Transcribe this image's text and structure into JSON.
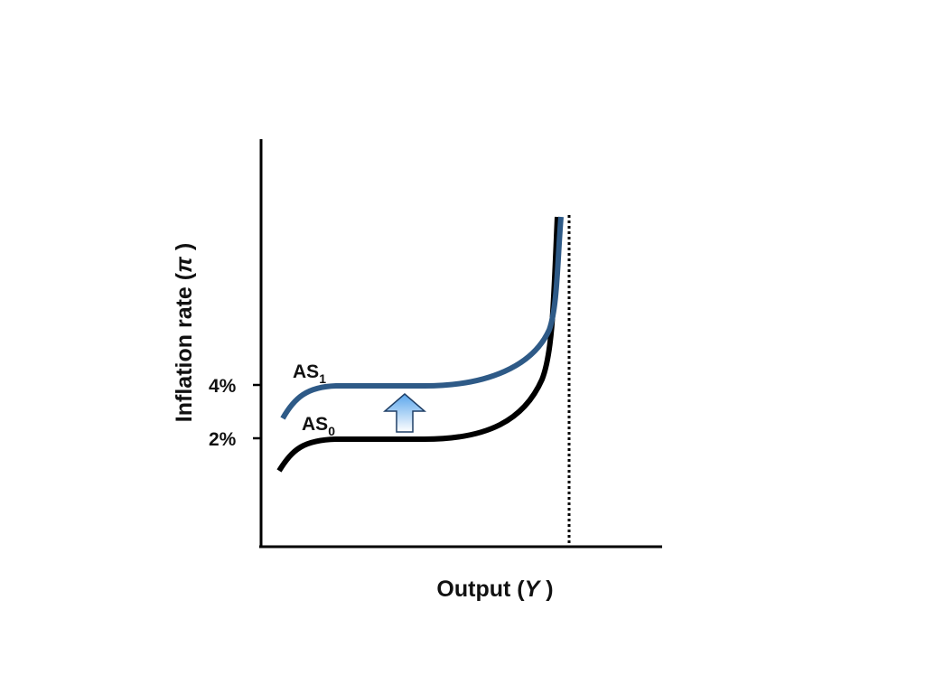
{
  "chart_data": {
    "type": "line",
    "title": "",
    "xlabel": "Output",
    "xlabel_symbol": "Y",
    "ylabel": "Inflation rate",
    "ylabel_symbol": "π",
    "y_ticks": [
      {
        "label": "4%",
        "value": 4
      },
      {
        "label": "2%",
        "value": 2
      }
    ],
    "series": [
      {
        "name": "AS",
        "subscript": "1",
        "color": "#2e5a87"
      },
      {
        "name": "AS",
        "subscript": "0",
        "color": "#000000"
      }
    ],
    "annotations": {
      "shift_arrow": "up",
      "potential_output_line": "dotted vertical"
    },
    "grid": false,
    "legend": "none"
  }
}
